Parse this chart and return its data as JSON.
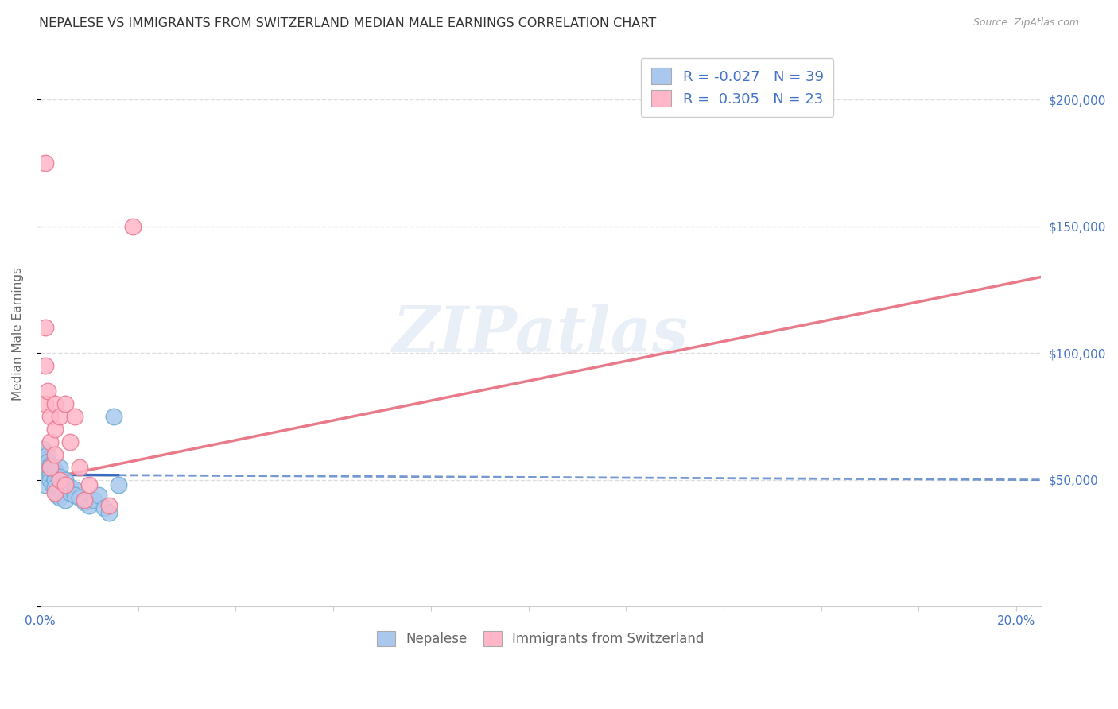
{
  "title": "NEPALESE VS IMMIGRANTS FROM SWITZERLAND MEDIAN MALE EARNINGS CORRELATION CHART",
  "source": "Source: ZipAtlas.com",
  "ylabel": "Median Male Earnings",
  "watermark": "ZIPatlas",
  "xlim": [
    0.0,
    0.205
  ],
  "ylim": [
    0,
    215000
  ],
  "yticks": [
    0,
    50000,
    100000,
    150000,
    200000
  ],
  "ytick_labels": [
    "",
    "$50,000",
    "$100,000",
    "$150,000",
    "$200,000"
  ],
  "series1_name": "Nepalese",
  "series1_color": "#aac8ee",
  "series1_edge_color": "#6baed6",
  "series1_R": "-0.027",
  "series1_N": "39",
  "series1_x": [
    0.0005,
    0.001,
    0.001,
    0.001,
    0.001,
    0.0015,
    0.0015,
    0.002,
    0.002,
    0.002,
    0.002,
    0.002,
    0.0025,
    0.0025,
    0.003,
    0.003,
    0.003,
    0.003,
    0.0035,
    0.004,
    0.004,
    0.004,
    0.004,
    0.005,
    0.005,
    0.005,
    0.006,
    0.006,
    0.007,
    0.007,
    0.008,
    0.009,
    0.01,
    0.011,
    0.012,
    0.013,
    0.014,
    0.015,
    0.016
  ],
  "series1_y": [
    62000,
    58000,
    55000,
    53000,
    48000,
    60000,
    57000,
    56000,
    55000,
    53000,
    52000,
    50000,
    55000,
    48000,
    54000,
    52000,
    50000,
    47000,
    44000,
    55000,
    51000,
    47000,
    43000,
    50000,
    48000,
    42000,
    47000,
    45000,
    46000,
    44000,
    43000,
    41000,
    40000,
    42000,
    44000,
    39000,
    37000,
    75000,
    48000
  ],
  "series2_name": "Immigrants from Switzerland",
  "series2_color": "#ffb6c8",
  "series2_edge_color": "#e87a90",
  "series2_R": "0.305",
  "series2_N": "23",
  "series2_x": [
    0.001,
    0.001,
    0.001,
    0.001,
    0.0015,
    0.002,
    0.002,
    0.002,
    0.003,
    0.003,
    0.003,
    0.003,
    0.004,
    0.004,
    0.005,
    0.005,
    0.006,
    0.007,
    0.008,
    0.009,
    0.01,
    0.014,
    0.019
  ],
  "series2_y": [
    175000,
    110000,
    95000,
    80000,
    85000,
    75000,
    65000,
    55000,
    80000,
    70000,
    60000,
    45000,
    75000,
    50000,
    80000,
    48000,
    65000,
    75000,
    55000,
    42000,
    48000,
    40000,
    150000
  ],
  "line1_x": [
    0.0,
    0.205
  ],
  "line1_y": [
    52000,
    50000
  ],
  "line1_solid_end": 0.016,
  "line1_color": "#3a6bbf",
  "line2_x": [
    0.0,
    0.205
  ],
  "line2_y": [
    50000,
    130000
  ],
  "line2_color": "#e87a8a",
  "grid_color": "#dddddd",
  "background_color": "#ffffff",
  "right_tick_color": "#4472c4",
  "legend_fontsize": 13,
  "title_fontsize": 11.5,
  "axis_label_fontsize": 11,
  "tick_fontsize": 11
}
